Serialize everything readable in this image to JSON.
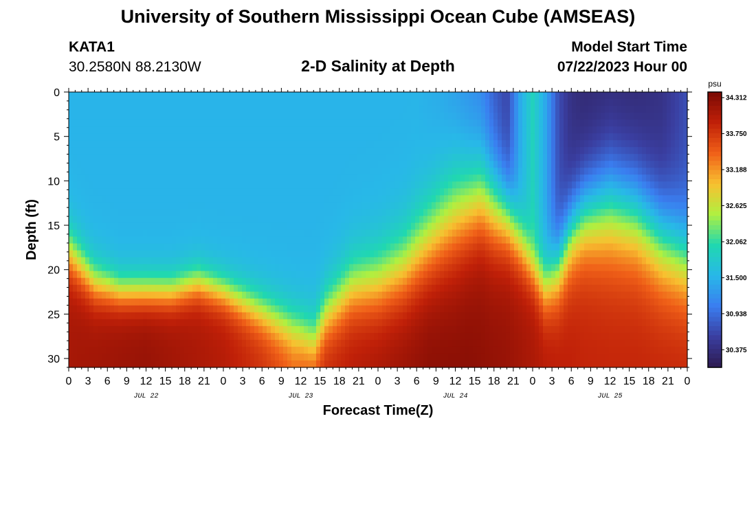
{
  "title_top": "University of Southern Mississippi Ocean Cube (AMSEAS)",
  "title_bottom": "University of Southern Mississippi Ocean Cube (AMSEAS)",
  "station": "KATA1",
  "coordinates": "30.2580N  88.2130W",
  "model_start_label": "Model Start Time",
  "model_start_value": "07/22/2023 Hour 00",
  "chart_data": {
    "type": "heatmap",
    "title": "2-D Salinity at Depth",
    "xlabel": "Forecast Time(Z)",
    "ylabel": "Depth (ft)",
    "x_range_hours": [
      0,
      96
    ],
    "y_range_ft": [
      0,
      31
    ],
    "x_tick_labels": [
      "0",
      "3",
      "6",
      "9",
      "12",
      "15",
      "18",
      "21",
      "0",
      "3",
      "6",
      "9",
      "12",
      "15",
      "18",
      "21",
      "0",
      "3",
      "6",
      "9",
      "12",
      "15",
      "18",
      "21",
      "0",
      "3",
      "6",
      "9",
      "12",
      "15",
      "18",
      "21",
      "0"
    ],
    "date_labels": [
      {
        "label": "JUL 22",
        "hour": 12
      },
      {
        "label": "JUL 23",
        "hour": 36
      },
      {
        "label": "JUL 24",
        "hour": 60
      },
      {
        "label": "JUL 25",
        "hour": 84
      }
    ],
    "y_ticks": [
      0,
      5,
      10,
      15,
      20,
      25,
      30
    ],
    "colorbar": {
      "unit": "psu",
      "min": 30.1,
      "max": 34.4,
      "labels": [
        "34.312",
        "33.750",
        "33.188",
        "32.625",
        "32.062",
        "31.500",
        "30.938",
        "30.375"
      ]
    },
    "colormap": [
      "#2d1a50",
      "#3a3ea0",
      "#3a7ef0",
      "#28b8e8",
      "#20d8b0",
      "#b0f040",
      "#f8c030",
      "#f06018",
      "#c02008",
      "#7a0a04"
    ],
    "surface_salinity_by_hour": {
      "hours": [
        0,
        8,
        24,
        36,
        48,
        54,
        58,
        62,
        64,
        66,
        68,
        70,
        72,
        74,
        76,
        78,
        80,
        84,
        88,
        92,
        96
      ],
      "values": [
        31.5,
        31.5,
        31.5,
        31.5,
        31.5,
        31.5,
        31.4,
        31.2,
        31.1,
        30.8,
        30.6,
        31.4,
        31.9,
        31.4,
        30.7,
        30.4,
        30.3,
        30.3,
        30.3,
        30.4,
        30.7
      ]
    },
    "bottom_salinity_by_hour": {
      "hours": [
        0,
        12,
        24,
        30,
        35,
        40,
        48,
        56,
        62,
        68,
        74,
        80,
        88,
        96
      ],
      "values": [
        34.1,
        34.2,
        34.0,
        33.8,
        33.5,
        33.9,
        34.1,
        34.3,
        34.3,
        34.2,
        34.0,
        33.9,
        33.9,
        33.9
      ]
    },
    "halocline_depth_ft_by_hour": {
      "hours": [
        0,
        4,
        8,
        16,
        20,
        24,
        28,
        32,
        36,
        38,
        40,
        44,
        48,
        52,
        56,
        60,
        64,
        68,
        70,
        72,
        74,
        76,
        78,
        80,
        84,
        88,
        92,
        96
      ],
      "values": [
        18,
        21.5,
        22.5,
        22.5,
        21.5,
        22.5,
        24,
        25.5,
        27,
        28,
        25,
        22,
        21.5,
        20,
        17,
        14,
        12,
        14,
        17,
        20,
        22,
        20,
        16,
        14,
        13,
        14,
        17,
        19
      ]
    },
    "halocline_thickness_ft_by_hour": {
      "hours": [
        0,
        8,
        24,
        36,
        44,
        52,
        60,
        66,
        72,
        78,
        84,
        96
      ],
      "values": [
        4,
        3,
        3,
        4,
        5,
        6,
        8,
        7,
        4,
        6,
        8,
        7
      ]
    }
  }
}
